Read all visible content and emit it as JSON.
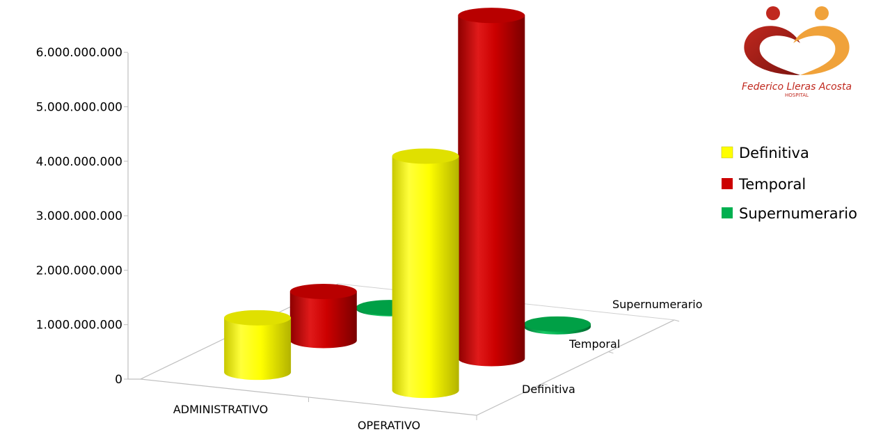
{
  "logo": {
    "name": "Federico Lleras Acosta",
    "subtitle": "HOSPITAL",
    "colors": {
      "red": "#c0281e",
      "orange": "#f0a23a"
    }
  },
  "chart_data": {
    "type": "bar",
    "subtype": "3d-cylinder",
    "title": "",
    "xlabel": "",
    "ylabel": "",
    "categories": [
      "ADMINISTRATIVO",
      "OPERATIVO"
    ],
    "depth_categories": [
      "Definitiva",
      "Temporal",
      "Supernumerario"
    ],
    "series": [
      {
        "name": "Definitiva",
        "color": "#ffff00",
        "values": [
          1000000000,
          4300000000
        ]
      },
      {
        "name": "Temporal",
        "color": "#cc0000",
        "values": [
          900000000,
          6300000000
        ]
      },
      {
        "name": "Supernumerario",
        "color": "#00b050",
        "values": [
          20000000,
          50000000
        ]
      }
    ],
    "yticks": [
      "0",
      "1.000.000.000",
      "2.000.000.000",
      "3.000.000.000",
      "4.000.000.000",
      "5.000.000.000",
      "6.000.000.000"
    ],
    "ylim": [
      0,
      6000000000
    ],
    "legend_position": "right",
    "grid": false
  }
}
